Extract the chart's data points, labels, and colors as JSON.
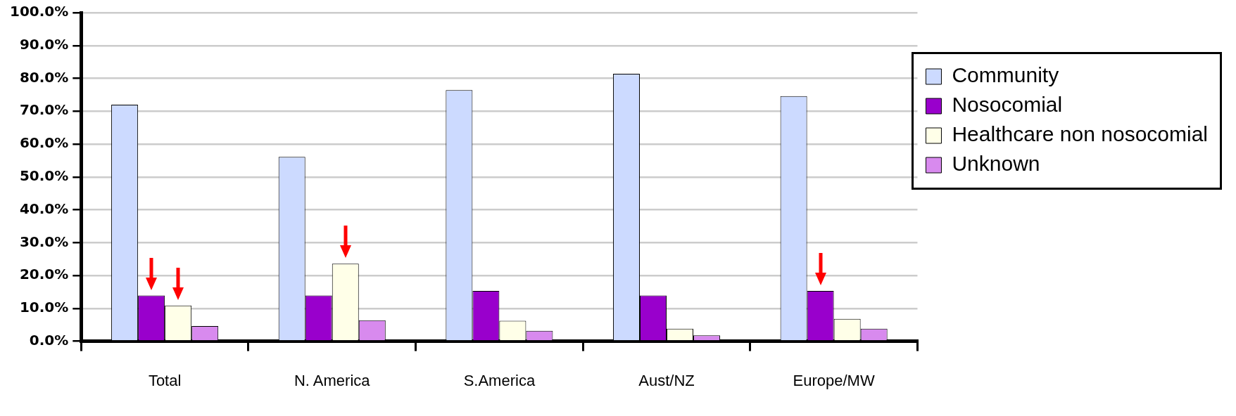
{
  "chart_data": {
    "type": "bar",
    "categories": [
      "Total",
      "N. America",
      "S.America",
      "Aust/NZ",
      "Europe/MW"
    ],
    "series": [
      {
        "name": "Community",
        "color": "#ccdaff",
        "values": [
          72.0,
          56.1,
          76.4,
          81.4,
          74.6
        ]
      },
      {
        "name": "Nosocomial",
        "color": "#9900cc",
        "values": [
          13.9,
          13.9,
          15.3,
          13.9,
          15.3
        ]
      },
      {
        "name": "Healthcare non nosocomial",
        "color": "#ffffe8",
        "values": [
          10.9,
          23.6,
          6.2,
          3.8,
          6.8
        ]
      },
      {
        "name": "Unknown",
        "color": "#d88aee",
        "values": [
          4.6,
          6.4,
          3.2,
          1.8,
          3.8
        ]
      }
    ],
    "ylim": [
      0,
      100
    ],
    "yticks": [
      {
        "value": 0,
        "label": "0.0%"
      },
      {
        "value": 10,
        "label": "10.0%"
      },
      {
        "value": 20,
        "label": "20.0%"
      },
      {
        "value": 30,
        "label": "30.0%"
      },
      {
        "value": 40,
        "label": "40.0%"
      },
      {
        "value": 50,
        "label": "50.0%"
      },
      {
        "value": 60,
        "label": "60.0%"
      },
      {
        "value": 70,
        "label": "70.0%"
      },
      {
        "value": 80,
        "label": "80.0%"
      },
      {
        "value": 90,
        "label": "90.0%"
      },
      {
        "value": 100,
        "label": "100.0%"
      }
    ],
    "grid": "y",
    "legend": "right"
  }
}
